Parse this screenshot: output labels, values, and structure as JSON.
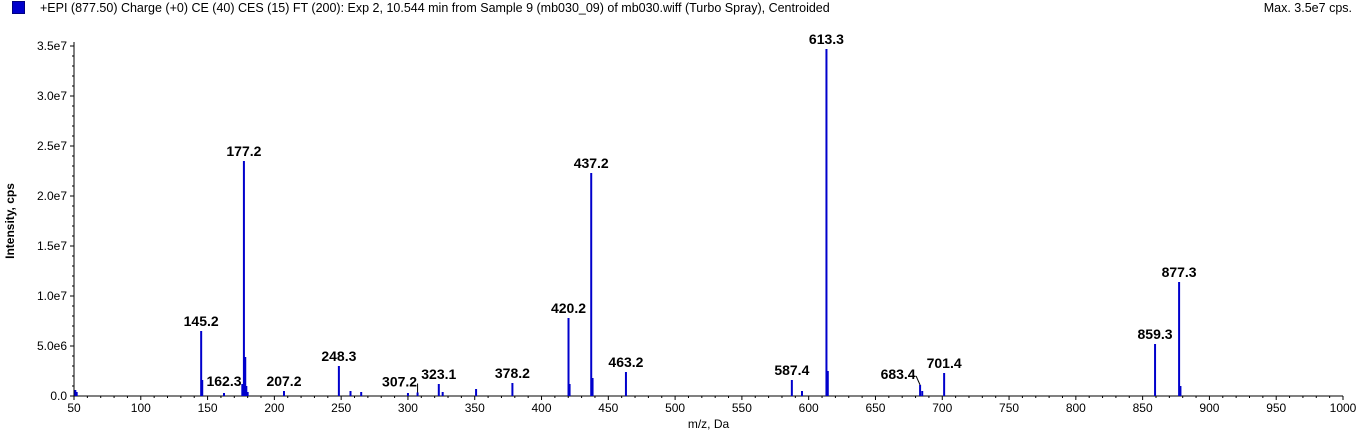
{
  "header": {
    "title": "+EPI (877.50) Charge (+0) CE (40) CES (15) FT (200): Exp 2, 10.544 min from Sample 9 (mb030_09) of mb030.wiff (Turbo Spray), Centroided",
    "max_label": "Max. 3.5e7 cps."
  },
  "colors": {
    "peak": "#0000cc",
    "axis": "#000000",
    "background": "#ffffff"
  },
  "chart_data": {
    "type": "bar",
    "xlabel": "m/z, Da",
    "ylabel": "Intensity, cps",
    "xlim": [
      50,
      1000
    ],
    "ylim": [
      0,
      35000000
    ],
    "grid": false,
    "x_ticks": [
      50,
      100,
      150,
      200,
      250,
      300,
      350,
      400,
      450,
      500,
      550,
      600,
      650,
      700,
      750,
      800,
      850,
      900,
      950,
      1000
    ],
    "y_ticks": [
      {
        "value": 0,
        "label": "0.0"
      },
      {
        "value": 5000000,
        "label": "5.0e6"
      },
      {
        "value": 10000000,
        "label": "1.0e7"
      },
      {
        "value": 15000000,
        "label": "1.5e7"
      },
      {
        "value": 20000000,
        "label": "2.0e7"
      },
      {
        "value": 25000000,
        "label": "2.5e7"
      },
      {
        "value": 30000000,
        "label": "3.0e7"
      },
      {
        "value": 35000000,
        "label": "3.5e7"
      }
    ],
    "peaks": [
      {
        "mz": 51.0,
        "intensity": 600000
      },
      {
        "mz": 52.0,
        "intensity": 400000
      },
      {
        "mz": 145.2,
        "intensity": 6500000,
        "label": "145.2"
      },
      {
        "mz": 146.0,
        "intensity": 1600000
      },
      {
        "mz": 162.3,
        "intensity": 300000,
        "label": "162.3"
      },
      {
        "mz": 176.0,
        "intensity": 1200000
      },
      {
        "mz": 177.2,
        "intensity": 23500000,
        "label": "177.2"
      },
      {
        "mz": 178.2,
        "intensity": 3900000
      },
      {
        "mz": 179.0,
        "intensity": 1000000
      },
      {
        "mz": 180.0,
        "intensity": 400000
      },
      {
        "mz": 207.2,
        "intensity": 500000,
        "label": "207.2"
      },
      {
        "mz": 248.3,
        "intensity": 3000000,
        "label": "248.3"
      },
      {
        "mz": 257.0,
        "intensity": 500000
      },
      {
        "mz": 265.0,
        "intensity": 400000
      },
      {
        "mz": 300.0,
        "intensity": 300000
      },
      {
        "mz": 307.2,
        "intensity": 350000,
        "label": "307.2"
      },
      {
        "mz": 323.1,
        "intensity": 1200000,
        "label": "323.1"
      },
      {
        "mz": 326.0,
        "intensity": 400000
      },
      {
        "mz": 351.0,
        "intensity": 700000
      },
      {
        "mz": 378.2,
        "intensity": 1300000,
        "label": "378.2"
      },
      {
        "mz": 420.2,
        "intensity": 7800000,
        "label": "420.2"
      },
      {
        "mz": 421.0,
        "intensity": 1200000
      },
      {
        "mz": 437.2,
        "intensity": 22300000,
        "label": "437.2"
      },
      {
        "mz": 438.2,
        "intensity": 1800000
      },
      {
        "mz": 463.2,
        "intensity": 2400000,
        "label": "463.2"
      },
      {
        "mz": 587.4,
        "intensity": 1600000,
        "label": "587.4"
      },
      {
        "mz": 595.0,
        "intensity": 500000
      },
      {
        "mz": 613.3,
        "intensity": 34700000,
        "label": "613.3"
      },
      {
        "mz": 614.3,
        "intensity": 2500000
      },
      {
        "mz": 683.4,
        "intensity": 1100000,
        "label": "683.4"
      },
      {
        "mz": 685.0,
        "intensity": 500000
      },
      {
        "mz": 701.4,
        "intensity": 2300000,
        "label": "701.4"
      },
      {
        "mz": 859.3,
        "intensity": 5200000,
        "label": "859.3"
      },
      {
        "mz": 877.3,
        "intensity": 11400000,
        "label": "877.3"
      },
      {
        "mz": 878.3,
        "intensity": 1000000
      }
    ]
  }
}
